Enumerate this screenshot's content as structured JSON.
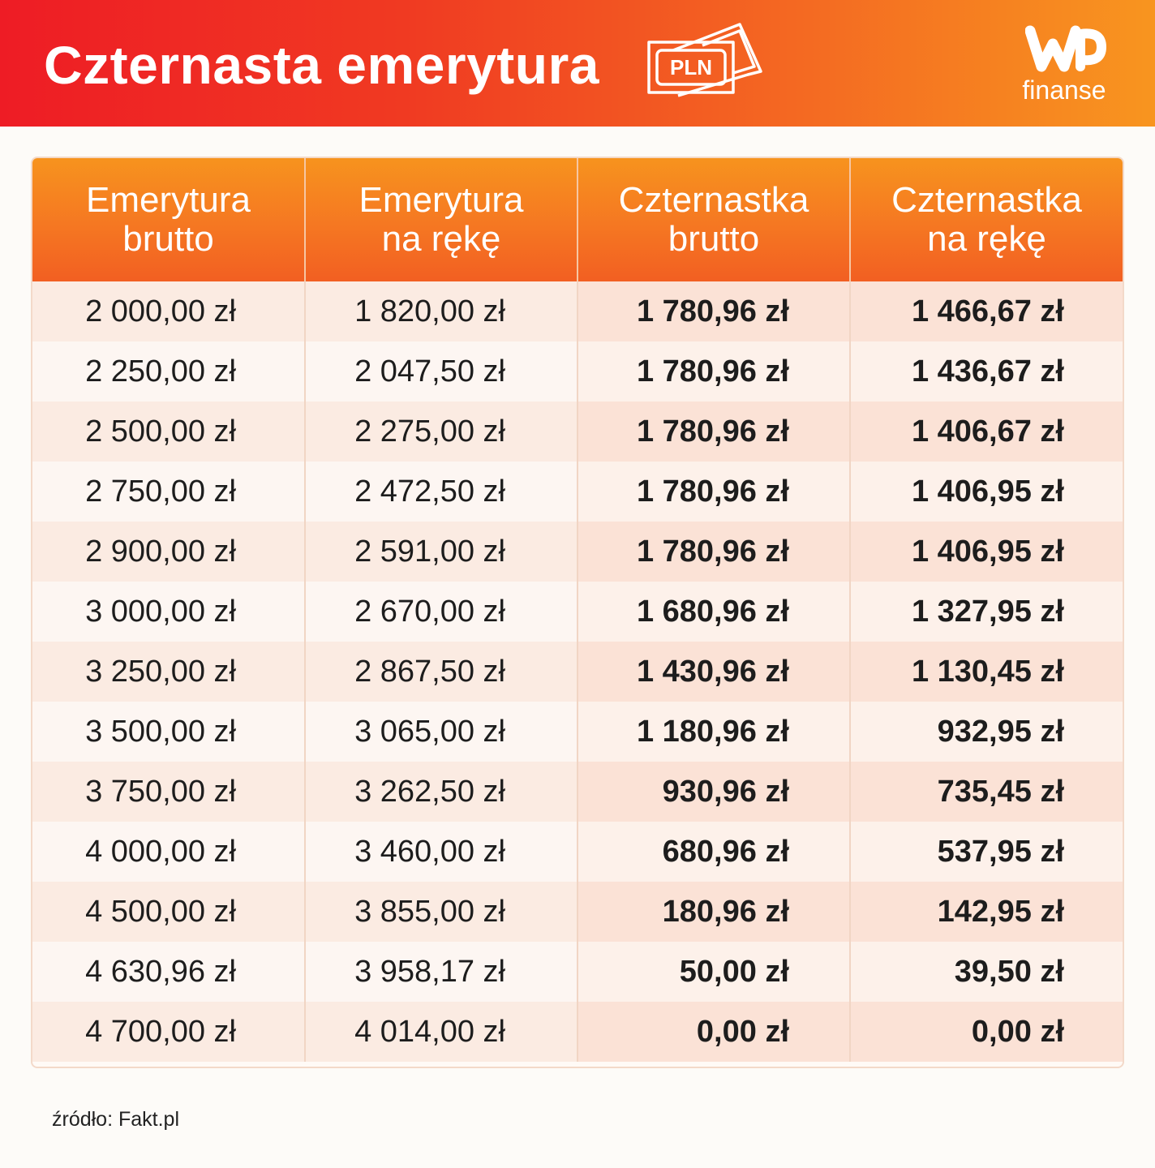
{
  "header": {
    "title": "Czternasta emerytura",
    "badge_text": "PLN",
    "brand_name": "finanse"
  },
  "chart_data": {
    "type": "table",
    "columns": [
      [
        "Emerytura",
        "brutto"
      ],
      [
        "Emerytura",
        "na rękę"
      ],
      [
        "Czternastka",
        "brutto"
      ],
      [
        "Czternastka",
        "na rękę"
      ]
    ],
    "rows": [
      [
        "2 000,00 zł",
        "1 820,00 zł",
        "1 780,96 zł",
        "1 466,67 zł"
      ],
      [
        "2 250,00 zł",
        "2 047,50 zł",
        "1 780,96 zł",
        "1 436,67 zł"
      ],
      [
        "2 500,00 zł",
        "2 275,00 zł",
        "1 780,96 zł",
        "1 406,67 zł"
      ],
      [
        "2 750,00 zł",
        "2 472,50 zł",
        "1 780,96 zł",
        "1 406,95 zł"
      ],
      [
        "2 900,00 zł",
        "2 591,00 zł",
        "1 780,96 zł",
        "1 406,95 zł"
      ],
      [
        "3 000,00 zł",
        "2 670,00 zł",
        "1 680,96 zł",
        "1 327,95 zł"
      ],
      [
        "3 250,00 zł",
        "2 867,50 zł",
        "1 430,96 zł",
        "1 130,45 zł"
      ],
      [
        "3 500,00 zł",
        "3 065,00 zł",
        "1 180,96 zł",
        "932,95 zł"
      ],
      [
        "3 750,00 zł",
        "3 262,50 zł",
        "930,96 zł",
        "735,45 zł"
      ],
      [
        "4 000,00 zł",
        "3 460,00 zł",
        "680,96 zł",
        "537,95 zł"
      ],
      [
        "4 500,00 zł",
        "3 855,00 zł",
        "180,96 zł",
        "142,95 zł"
      ],
      [
        "4 630,96 zł",
        "3 958,17 zł",
        "50,00 zł",
        "39,50 zł"
      ],
      [
        "4 700,00 zł",
        "4 014,00 zł",
        "0,00 zł",
        "0,00 zł"
      ]
    ]
  },
  "footer": {
    "source": "źródło: Fakt.pl"
  },
  "colors": {
    "header_gradient_start": "#ee1c25",
    "header_gradient_end": "#f8951f",
    "table_header": "#f57722",
    "text": "#1d1d1d"
  },
  "icons": {
    "banknote": "banknote-icon",
    "logo": "wp-logo"
  }
}
